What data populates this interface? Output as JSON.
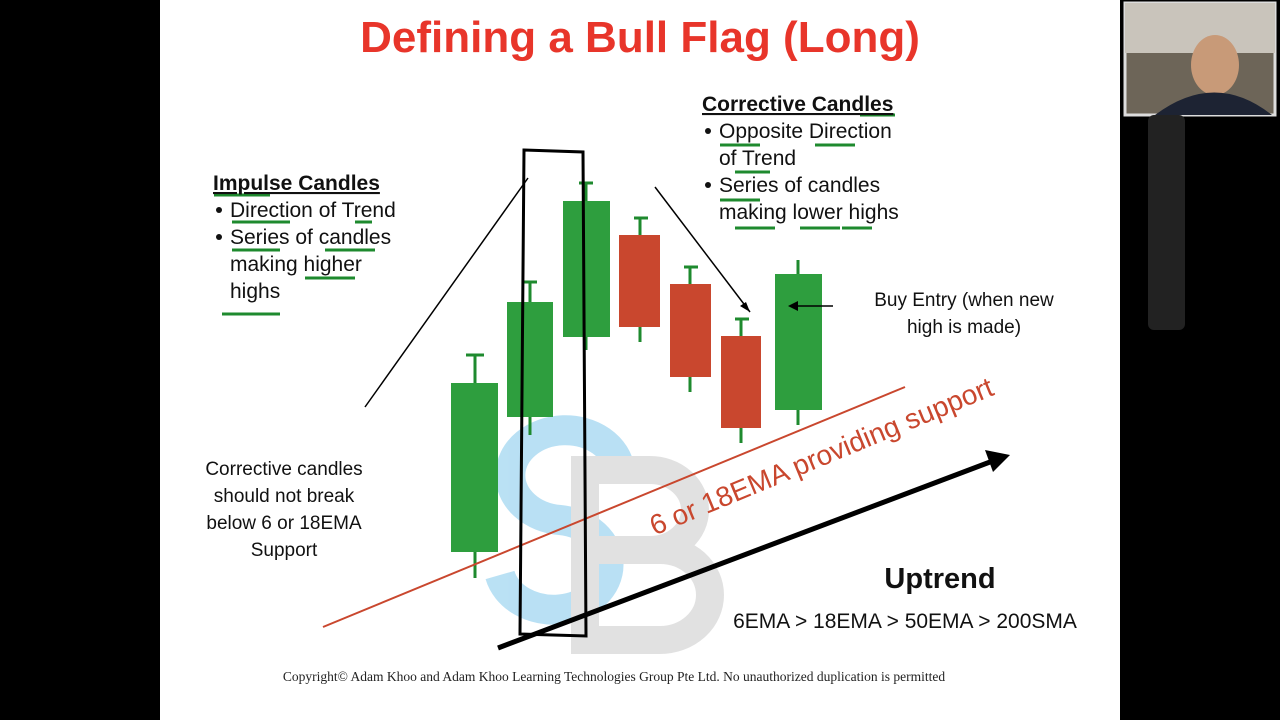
{
  "slide": {
    "title": "Defining a Bull Flag (Long)",
    "impulse": {
      "heading": "Impulse Candles",
      "bullets": [
        [
          "Direction of Trend"
        ],
        [
          "Series of candles",
          "making higher",
          "highs"
        ]
      ]
    },
    "corrective": {
      "heading": "Corrective Candles",
      "bullets": [
        [
          "Opposite Direction",
          "of Trend"
        ],
        [
          "Series of candles",
          "making lower highs"
        ]
      ]
    },
    "buy_entry": [
      "Buy Entry (when new",
      "high is made)"
    ],
    "corrective_note": [
      "Corrective candles",
      "should not break",
      "below 6 or 18EMA",
      "Support"
    ],
    "ema_label": "6 or 18EMA providing support",
    "uptrend": "Uptrend",
    "ema_order": "6EMA > 18EMA > 50EMA > 200SMA",
    "copyright": "Copyright© Adam Khoo and Adam Khoo Learning Technologies Group Pte Ltd. No unauthorized duplication is permitted"
  }
}
